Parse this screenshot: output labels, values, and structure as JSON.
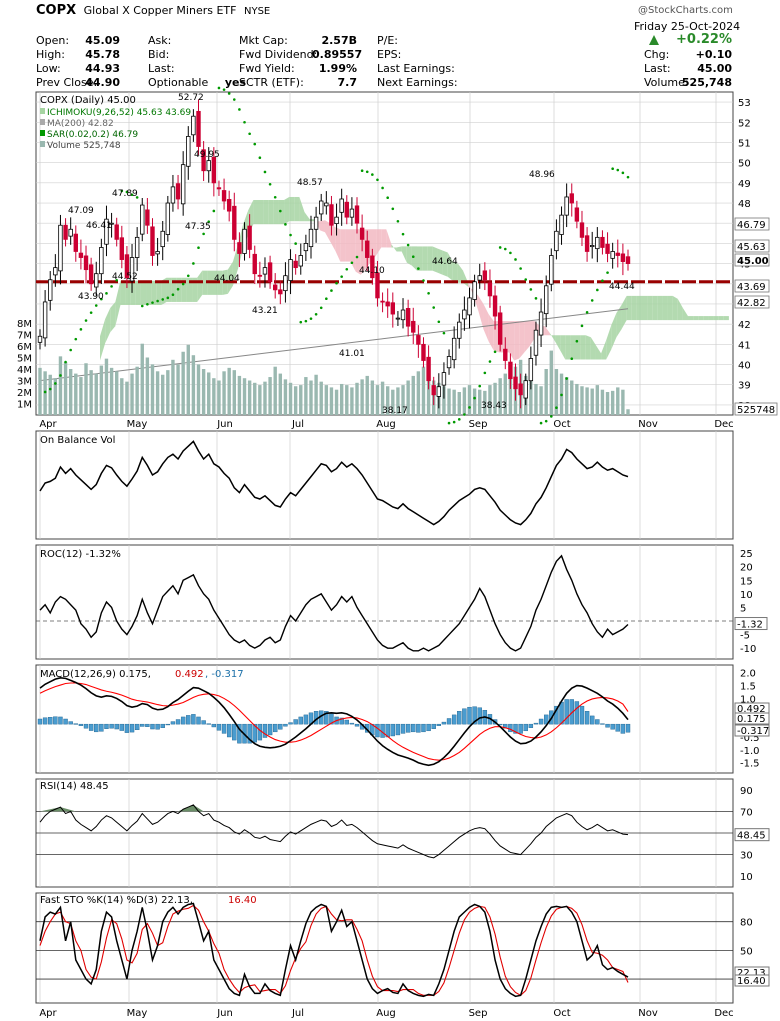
{
  "header": {
    "symbol": "COPX",
    "name": "Global X Copper Miners ETF",
    "exchange": "NYSE",
    "watermark": "@StockCharts.com",
    "date": "Friday  25-Oct-2024",
    "change_pct": "+0.22%",
    "quote_left": [
      {
        "label": "Open:",
        "value": "45.09"
      },
      {
        "label": "High:",
        "value": "45.78"
      },
      {
        "label": "Low:",
        "value": "44.93"
      },
      {
        "label": "Prev Close:",
        "value": "44.90"
      }
    ],
    "quote_mid1": [
      {
        "label": "Ask:",
        "value": ""
      },
      {
        "label": "Bid:",
        "value": ""
      },
      {
        "label": "Last:",
        "value": ""
      },
      {
        "label": "Optionable",
        "value": "yes"
      }
    ],
    "quote_mid2": [
      {
        "label": "Mkt Cap:",
        "value": "2.57B"
      },
      {
        "label": "Fwd Dividend:",
        "value": "0.89557"
      },
      {
        "label": "Fwd Yield:",
        "value": "1.99%"
      },
      {
        "label": "SCTR (ETF):",
        "value": "7.7"
      }
    ],
    "quote_mid3": [
      {
        "label": "P/E:",
        "value": ""
      },
      {
        "label": "EPS:",
        "value": ""
      },
      {
        "label": "Last Earnings:",
        "value": ""
      },
      {
        "label": "Next Earnings:",
        "value": ""
      }
    ],
    "quote_right": [
      {
        "label": "Chg:",
        "value": "+0.10"
      },
      {
        "label": "Last:",
        "value": "45.00"
      },
      {
        "label": "Volume:",
        "value": "525,748"
      }
    ]
  },
  "colors": {
    "up": "#000000",
    "down": "#cc0033",
    "grid": "#d0d0d0",
    "cloud_bull": "#a6d4a2",
    "cloud_bear": "#f2b8c2",
    "ma200": "#888888",
    "sar": "#009900",
    "volume": "#9ab8b0",
    "signal": "#ff0000",
    "histogram": "#4a9ccf",
    "support": "#990000"
  },
  "chart_data": [
    {
      "type": "candlestick",
      "title": "COPX (Daily) 45.00",
      "legend": [
        {
          "text": "ICHIMOKU(9,26,52) 45.63 43.69",
          "icon": "cloud-icon"
        },
        {
          "text": "MA(200) 42.82",
          "icon": "line-icon"
        },
        {
          "text": "SAR(0.02,0.2) 46.79",
          "icon": "dots-icon"
        },
        {
          "text": "Volume 525,748",
          "icon": "bars-icon"
        }
      ],
      "months": [
        "Apr",
        "May",
        "Jun",
        "Jul",
        "Aug",
        "Sep",
        "Oct",
        "Nov",
        "Dec"
      ],
      "y_ticks": [
        38,
        39,
        40,
        41,
        42,
        43,
        44,
        45,
        46,
        47,
        48,
        49,
        50,
        51,
        52,
        53
      ],
      "ylim": [
        37.5,
        53.5
      ],
      "volume_ticks": [
        "1M",
        "2M",
        "3M",
        "4M",
        "5M",
        "6M",
        "7M",
        "8M"
      ],
      "volume_max_m": 10,
      "support_level": 44.1,
      "price_tags": [
        "46.79",
        "45.63",
        "45.00",
        "43.69",
        "42.82"
      ],
      "volume_tag": "525748",
      "annotations": [
        "52.72",
        "49.95",
        "47.89",
        "47.35",
        "47.09",
        "46.41",
        "44.52",
        "44.04",
        "43.90",
        "43.21",
        "48.57",
        "44.10",
        "41.01",
        "38.17",
        "44.64",
        "48.96",
        "38.43",
        "44.44"
      ],
      "closes": [
        41.4,
        43.1,
        44.2,
        44.8,
        46.9,
        46.2,
        46.7,
        45.6,
        45.3,
        44.7,
        44.0,
        44.5,
        45.8,
        47.2,
        47.0,
        46.2,
        45.2,
        44.3,
        45.3,
        46.3,
        47.9,
        46.9,
        45.4,
        45.6,
        46.6,
        48.0,
        48.8,
        48.2,
        49.9,
        51.3,
        52.3,
        50.8,
        49.6,
        50.1,
        49.0,
        48.7,
        48.1,
        47.6,
        46.2,
        45.5,
        46.7,
        45.7,
        44.5,
        44.4,
        44.8,
        44.1,
        43.7,
        43.5,
        44.4,
        45.2,
        44.8,
        45.4,
        46.0,
        46.7,
        47.3,
        48.1,
        48.0,
        46.9,
        47.3,
        48.2,
        47.3,
        47.7,
        47.0,
        46.2,
        45.3,
        44.3,
        43.3,
        43.1,
        42.9,
        42.5,
        42.3,
        42.7,
        41.9,
        41.6,
        41.0,
        40.2,
        39.2,
        38.5,
        38.9,
        39.6,
        40.4,
        41.3,
        42.1,
        42.7,
        43.3,
        44.1,
        44.4,
        44.2,
        43.4,
        42.4,
        41.0,
        40.2,
        39.3,
        38.8,
        38.5,
        39.2,
        40.3,
        41.7,
        42.6,
        43.9,
        45.4,
        46.6,
        47.4,
        48.3,
        48.0,
        47.1,
        46.3,
        45.6,
        45.9,
        46.3,
        45.8,
        45.5,
        45.6,
        45.4,
        45.1,
        45.0
      ],
      "volume_m": [
        4.1,
        3.8,
        3.5,
        3.2,
        5.1,
        4.6,
        4.0,
        3.6,
        3.3,
        4.5,
        3.9,
        3.6,
        4.3,
        4.9,
        4.1,
        3.8,
        3.2,
        2.9,
        3.6,
        4.2,
        6.2,
        5.0,
        4.4,
        3.8,
        3.5,
        3.9,
        4.8,
        4.4,
        5.5,
        6.1,
        5.2,
        4.4,
        4.0,
        3.7,
        3.2,
        3.0,
        3.8,
        4.1,
        3.9,
        3.4,
        3.2,
        3.0,
        2.8,
        2.6,
        2.9,
        3.3,
        4.2,
        3.6,
        3.1,
        2.8,
        2.5,
        2.6,
        3.3,
        3.0,
        3.5,
        2.9,
        2.6,
        2.4,
        2.2,
        2.7,
        2.6,
        2.4,
        2.8,
        3.1,
        3.4,
        3.0,
        2.6,
        2.9,
        2.5,
        2.2,
        2.4,
        2.6,
        3.0,
        3.4,
        3.8,
        4.2,
        3.6,
        3.0,
        2.8,
        2.5,
        2.3,
        2.2,
        2.0,
        2.4,
        2.6,
        2.3,
        2.2,
        2.1,
        2.6,
        2.8,
        3.2,
        3.6,
        3.9,
        4.2,
        4.8,
        3.4,
        3.0,
        2.7,
        2.5,
        4.0,
        5.6,
        4.0,
        3.6,
        3.3,
        3.0,
        2.7,
        2.5,
        2.4,
        2.3,
        2.6,
        2.2,
        2.0,
        2.1,
        2.4,
        2.2,
        0.5
      ]
    },
    {
      "type": "line",
      "title": "On Balance Vol",
      "values": [
        0.5,
        0.6,
        0.62,
        0.66,
        0.8,
        0.72,
        0.78,
        0.7,
        0.64,
        0.58,
        0.52,
        0.58,
        0.72,
        0.82,
        0.79,
        0.7,
        0.62,
        0.56,
        0.65,
        0.75,
        0.92,
        0.82,
        0.7,
        0.74,
        0.84,
        0.92,
        0.96,
        0.9,
        1.0,
        1.06,
        1.12,
        1.0,
        0.9,
        0.96,
        0.84,
        0.8,
        0.72,
        0.66,
        0.54,
        0.48,
        0.58,
        0.5,
        0.42,
        0.4,
        0.44,
        0.38,
        0.32,
        0.3,
        0.4,
        0.48,
        0.44,
        0.52,
        0.6,
        0.68,
        0.76,
        0.84,
        0.82,
        0.74,
        0.78,
        0.86,
        0.8,
        0.84,
        0.78,
        0.7,
        0.6,
        0.5,
        0.4,
        0.38,
        0.34,
        0.3,
        0.28,
        0.34,
        0.28,
        0.24,
        0.2,
        0.16,
        0.12,
        0.08,
        0.12,
        0.18,
        0.26,
        0.32,
        0.38,
        0.42,
        0.46,
        0.52,
        0.54,
        0.52,
        0.44,
        0.36,
        0.26,
        0.2,
        0.14,
        0.1,
        0.08,
        0.14,
        0.22,
        0.34,
        0.42,
        0.54,
        0.68,
        0.82,
        0.9,
        1.02,
        0.98,
        0.9,
        0.84,
        0.78,
        0.8,
        0.86,
        0.8,
        0.76,
        0.78,
        0.74,
        0.7,
        0.68
      ]
    },
    {
      "type": "line",
      "title": "ROC(12) -1.32%",
      "y_ticks": [
        -10,
        -5,
        0,
        5,
        10,
        15,
        20,
        25
      ],
      "reference": 0,
      "tag": "-1.32",
      "values": [
        4,
        6,
        3,
        7,
        9,
        8,
        6,
        4,
        -1,
        -3,
        -6,
        -4,
        3,
        7,
        5,
        0,
        -3,
        -5,
        -2,
        2,
        8,
        3,
        -1,
        4,
        9,
        11,
        13,
        10,
        15,
        16,
        17,
        13,
        10,
        8,
        4,
        1,
        -2,
        -5,
        -7,
        -8,
        -7,
        -9,
        -10,
        -9,
        -7,
        -6,
        -8,
        -7,
        -2,
        2,
        0,
        3,
        6,
        8,
        9,
        10,
        7,
        4,
        6,
        9,
        7,
        9,
        5,
        2,
        -1,
        -4,
        -7,
        -9,
        -10,
        -10,
        -9,
        -8,
        -10,
        -11,
        -11,
        -10,
        -11,
        -10,
        -9,
        -7,
        -5,
        -3,
        -1,
        2,
        5,
        8,
        12,
        9,
        4,
        -1,
        -5,
        -8,
        -10,
        -11,
        -10,
        -6,
        -2,
        4,
        8,
        13,
        18,
        22,
        24,
        19,
        15,
        10,
        6,
        3,
        -1,
        -4,
        -6,
        -3,
        -5,
        -4,
        -3,
        -1.3
      ]
    },
    {
      "type": "line",
      "title": "MACD(12,26,9) 0.175, 0.492, -0.317",
      "series_names": [
        "MACD",
        "Signal",
        "Histogram"
      ],
      "y_ticks": [
        -1.5,
        -1.0,
        -0.5,
        0.0,
        0.5,
        1.0,
        1.5,
        2.0
      ],
      "tags": [
        "0.492",
        "0.175",
        "-0.317"
      ],
      "macd": [
        1.4,
        1.55,
        1.65,
        1.75,
        1.8,
        1.78,
        1.7,
        1.62,
        1.52,
        1.38,
        1.22,
        1.1,
        1.05,
        1.1,
        1.08,
        1.0,
        0.88,
        0.72,
        0.66,
        0.7,
        0.8,
        0.76,
        0.62,
        0.56,
        0.58,
        0.68,
        0.84,
        0.96,
        1.12,
        1.28,
        1.42,
        1.4,
        1.3,
        1.2,
        1.04,
        0.86,
        0.64,
        0.38,
        0.1,
        -0.2,
        -0.4,
        -0.6,
        -0.76,
        -0.86,
        -0.9,
        -0.92,
        -0.9,
        -0.86,
        -0.78,
        -0.64,
        -0.5,
        -0.34,
        -0.18,
        0.0,
        0.18,
        0.32,
        0.42,
        0.44,
        0.42,
        0.44,
        0.4,
        0.3,
        0.16,
        -0.02,
        -0.22,
        -0.44,
        -0.66,
        -0.84,
        -0.98,
        -1.1,
        -1.2,
        -1.26,
        -1.32,
        -1.4,
        -1.5,
        -1.56,
        -1.6,
        -1.56,
        -1.46,
        -1.3,
        -1.1,
        -0.86,
        -0.6,
        -0.34,
        -0.1,
        0.1,
        0.24,
        0.28,
        0.22,
        0.08,
        -0.1,
        -0.3,
        -0.5,
        -0.66,
        -0.76,
        -0.74,
        -0.66,
        -0.5,
        -0.3,
        -0.06,
        0.22,
        0.56,
        0.9,
        1.2,
        1.4,
        1.5,
        1.48,
        1.4,
        1.3,
        1.2,
        1.06,
        0.9,
        0.78,
        0.62,
        0.42,
        0.175
      ],
      "signal": [
        1.2,
        1.3,
        1.38,
        1.46,
        1.52,
        1.58,
        1.6,
        1.6,
        1.58,
        1.54,
        1.47,
        1.4,
        1.33,
        1.28,
        1.24,
        1.19,
        1.13,
        1.05,
        0.97,
        0.92,
        0.89,
        0.86,
        0.81,
        0.76,
        0.72,
        0.71,
        0.74,
        0.78,
        0.84,
        0.94,
        1.04,
        1.12,
        1.16,
        1.18,
        1.15,
        1.1,
        1.0,
        0.88,
        0.72,
        0.54,
        0.34,
        0.14,
        -0.06,
        -0.24,
        -0.38,
        -0.5,
        -0.6,
        -0.66,
        -0.7,
        -0.7,
        -0.68,
        -0.62,
        -0.54,
        -0.44,
        -0.32,
        -0.2,
        -0.08,
        0.04,
        0.14,
        0.2,
        0.24,
        0.26,
        0.24,
        0.18,
        0.1,
        -0.02,
        -0.16,
        -0.32,
        -0.48,
        -0.64,
        -0.78,
        -0.9,
        -1.0,
        -1.1,
        -1.18,
        -1.26,
        -1.34,
        -1.38,
        -1.4,
        -1.38,
        -1.32,
        -1.22,
        -1.1,
        -0.94,
        -0.76,
        -0.58,
        -0.4,
        -0.26,
        -0.16,
        -0.1,
        -0.1,
        -0.14,
        -0.2,
        -0.3,
        -0.4,
        -0.48,
        -0.52,
        -0.54,
        -0.5,
        -0.42,
        -0.3,
        -0.14,
        0.04,
        0.24,
        0.44,
        0.62,
        0.78,
        0.9,
        0.98,
        1.02,
        1.04,
        1.02,
        0.98,
        0.9,
        0.78,
        0.49
      ]
    },
    {
      "type": "line",
      "title": "RSI(14) 48.45",
      "y_ticks": [
        10,
        30,
        50,
        70,
        90
      ],
      "reference_lines": [
        30,
        50,
        70
      ],
      "tag": "48.45",
      "values": [
        60,
        66,
        70,
        72,
        74,
        68,
        70,
        62,
        58,
        55,
        52,
        56,
        62,
        66,
        64,
        60,
        56,
        52,
        57,
        61,
        68,
        63,
        58,
        60,
        64,
        68,
        70,
        68,
        72,
        74,
        76,
        70,
        66,
        68,
        62,
        60,
        57,
        55,
        51,
        49,
        53,
        50,
        46,
        45,
        47,
        44,
        43,
        42,
        47,
        51,
        49,
        52,
        55,
        58,
        60,
        62,
        61,
        56,
        58,
        62,
        57,
        58,
        55,
        51,
        47,
        43,
        40,
        39,
        38,
        37,
        36,
        39,
        36,
        34,
        32,
        30,
        28,
        27,
        30,
        34,
        38,
        42,
        46,
        49,
        52,
        54,
        55,
        54,
        49,
        43,
        38,
        35,
        32,
        31,
        30,
        35,
        40,
        46,
        50,
        56,
        60,
        64,
        66,
        68,
        66,
        60,
        56,
        53,
        55,
        58,
        55,
        52,
        53,
        51,
        49,
        48.45
      ]
    },
    {
      "type": "line",
      "title": "Fast STO %K(14) %D(3) 22.13, 16.40",
      "y_ticks": [
        20,
        50,
        80
      ],
      "reference_lines": [
        20,
        50,
        80
      ],
      "tags": [
        "22.13",
        "16.40"
      ],
      "k": [
        60,
        85,
        90,
        88,
        95,
        60,
        80,
        40,
        30,
        20,
        15,
        30,
        70,
        90,
        85,
        60,
        40,
        20,
        50,
        70,
        95,
        70,
        40,
        55,
        80,
        90,
        95,
        88,
        95,
        98,
        99,
        80,
        60,
        70,
        40,
        30,
        20,
        10,
        5,
        3,
        25,
        12,
        5,
        5,
        15,
        8,
        5,
        3,
        30,
        55,
        40,
        60,
        78,
        90,
        95,
        98,
        96,
        70,
        80,
        92,
        75,
        80,
        60,
        40,
        20,
        10,
        5,
        8,
        10,
        6,
        5,
        15,
        8,
        5,
        3,
        2,
        4,
        3,
        15,
        30,
        50,
        70,
        85,
        90,
        95,
        98,
        96,
        90,
        70,
        40,
        20,
        10,
        5,
        2,
        3,
        20,
        40,
        60,
        75,
        88,
        95,
        96,
        95,
        96,
        90,
        80,
        60,
        40,
        45,
        55,
        35,
        30,
        32,
        28,
        25,
        22.13
      ],
      "d": [
        55,
        70,
        80,
        88,
        90,
        80,
        78,
        60,
        50,
        30,
        22,
        20,
        38,
        63,
        82,
        78,
        62,
        40,
        37,
        47,
        72,
        78,
        68,
        55,
        58,
        75,
        88,
        91,
        93,
        94,
        97,
        92,
        80,
        70,
        57,
        47,
        30,
        20,
        12,
        6,
        11,
        13,
        14,
        7,
        8,
        9,
        9,
        5,
        13,
        29,
        42,
        52,
        59,
        76,
        88,
        94,
        96,
        88,
        82,
        81,
        82,
        82,
        72,
        60,
        40,
        23,
        12,
        8,
        8,
        8,
        7,
        9,
        9,
        9,
        5,
        3,
        3,
        3,
        7,
        16,
        32,
        50,
        68,
        82,
        90,
        94,
        96,
        95,
        85,
        67,
        43,
        23,
        12,
        6,
        3,
        8,
        21,
        40,
        58,
        74,
        86,
        93,
        95,
        96,
        94,
        89,
        77,
        60,
        48,
        47,
        45,
        40,
        32,
        30,
        28,
        16.4
      ]
    }
  ]
}
